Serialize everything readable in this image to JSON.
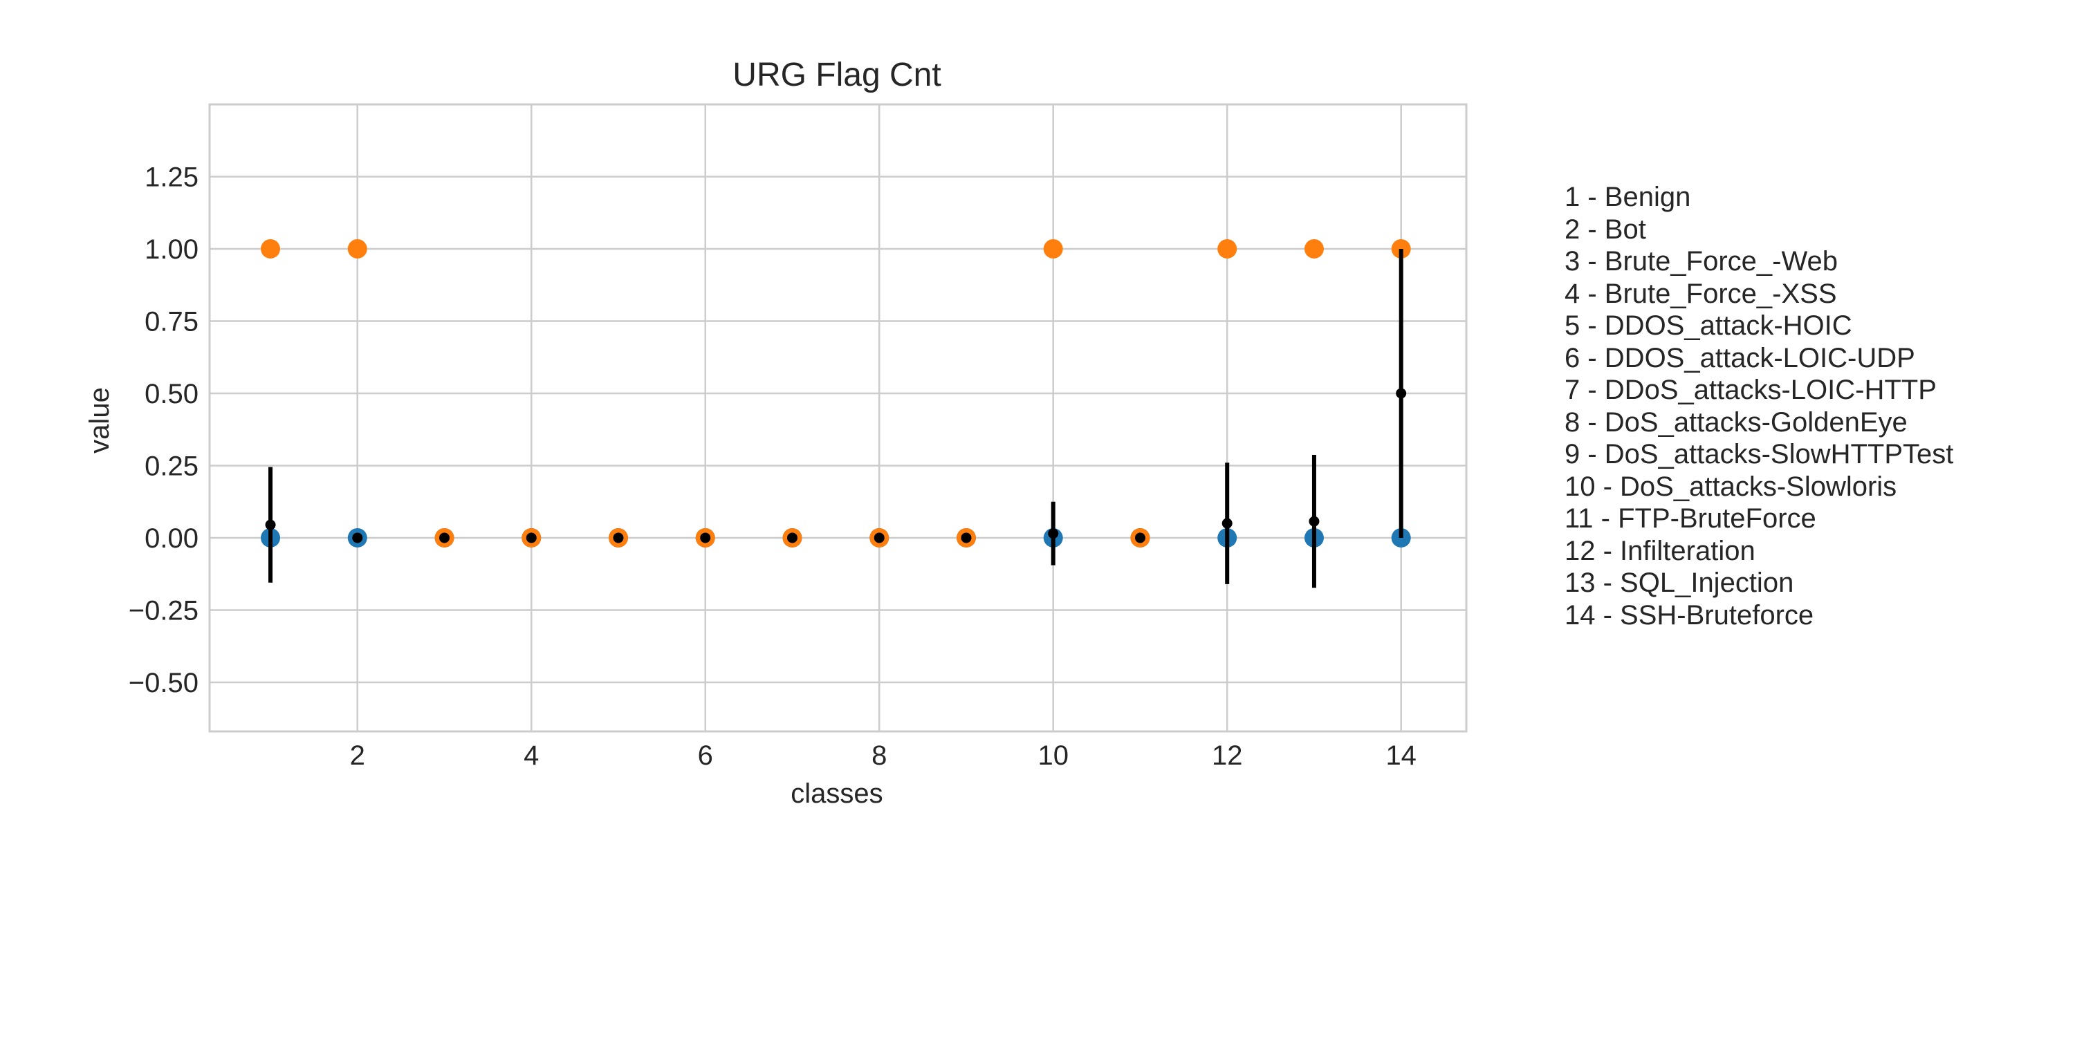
{
  "chart_data": {
    "type": "scatter",
    "title": "URG Flag Cnt",
    "xlabel": "classes",
    "ylabel": "value",
    "xlim": [
      0.3,
      14.75
    ],
    "ylim": [
      -0.67,
      1.5
    ],
    "xticks": [
      2,
      4,
      6,
      8,
      10,
      12,
      14
    ],
    "yticks": [
      -0.5,
      -0.25,
      0.0,
      0.25,
      0.5,
      0.75,
      1.0,
      1.25
    ],
    "xtick_labels": [
      "2",
      "4",
      "6",
      "8",
      "10",
      "12",
      "14"
    ],
    "ytick_labels": [
      "−0.50",
      "−0.25",
      "0.00",
      "0.25",
      "0.50",
      "0.75",
      "1.00",
      "1.25"
    ],
    "grid": true,
    "colors": {
      "min": "#1f77b4",
      "max": "#ff7f0e",
      "mean": "#000000"
    },
    "x": [
      1,
      2,
      3,
      4,
      5,
      6,
      7,
      8,
      9,
      10,
      11,
      12,
      13,
      14
    ],
    "series": [
      {
        "values": [
          0,
          0,
          0,
          0,
          0,
          0,
          0,
          0,
          0,
          0,
          0,
          0,
          0,
          0
        ]
      },
      {
        "values": [
          1,
          1,
          0,
          0,
          0,
          0,
          0,
          0,
          0,
          1,
          0,
          1,
          1,
          1
        ]
      },
      {
        "values": [
          0.045,
          0.0,
          0.0,
          0.0,
          0.0,
          0.0,
          0.0,
          0.0,
          0.0,
          0.015,
          0.0,
          0.05,
          0.057,
          0.5
        ],
        "error": [
          0.2,
          0.0,
          0.0,
          0.0,
          0.0,
          0.0,
          0.0,
          0.0,
          0.0,
          0.11,
          0.0,
          0.21,
          0.23,
          0.5
        ]
      }
    ],
    "legend_placement": "right",
    "legend_entries": [
      "1 - Benign",
      "2 - Bot",
      "3 - Brute_Force_-Web",
      "4 - Brute_Force_-XSS",
      "5 - DDOS_attack-HOIC",
      "6 - DDOS_attack-LOIC-UDP",
      "7 - DDoS_attacks-LOIC-HTTP",
      "8 - DoS_attacks-GoldenEye",
      "9 - DoS_attacks-SlowHTTPTest",
      "10 - DoS_attacks-Slowloris",
      "11 - FTP-BruteForce",
      "12 - Infilteration",
      "13 - SQL_Injection",
      "14 - SSH-Bruteforce"
    ]
  }
}
